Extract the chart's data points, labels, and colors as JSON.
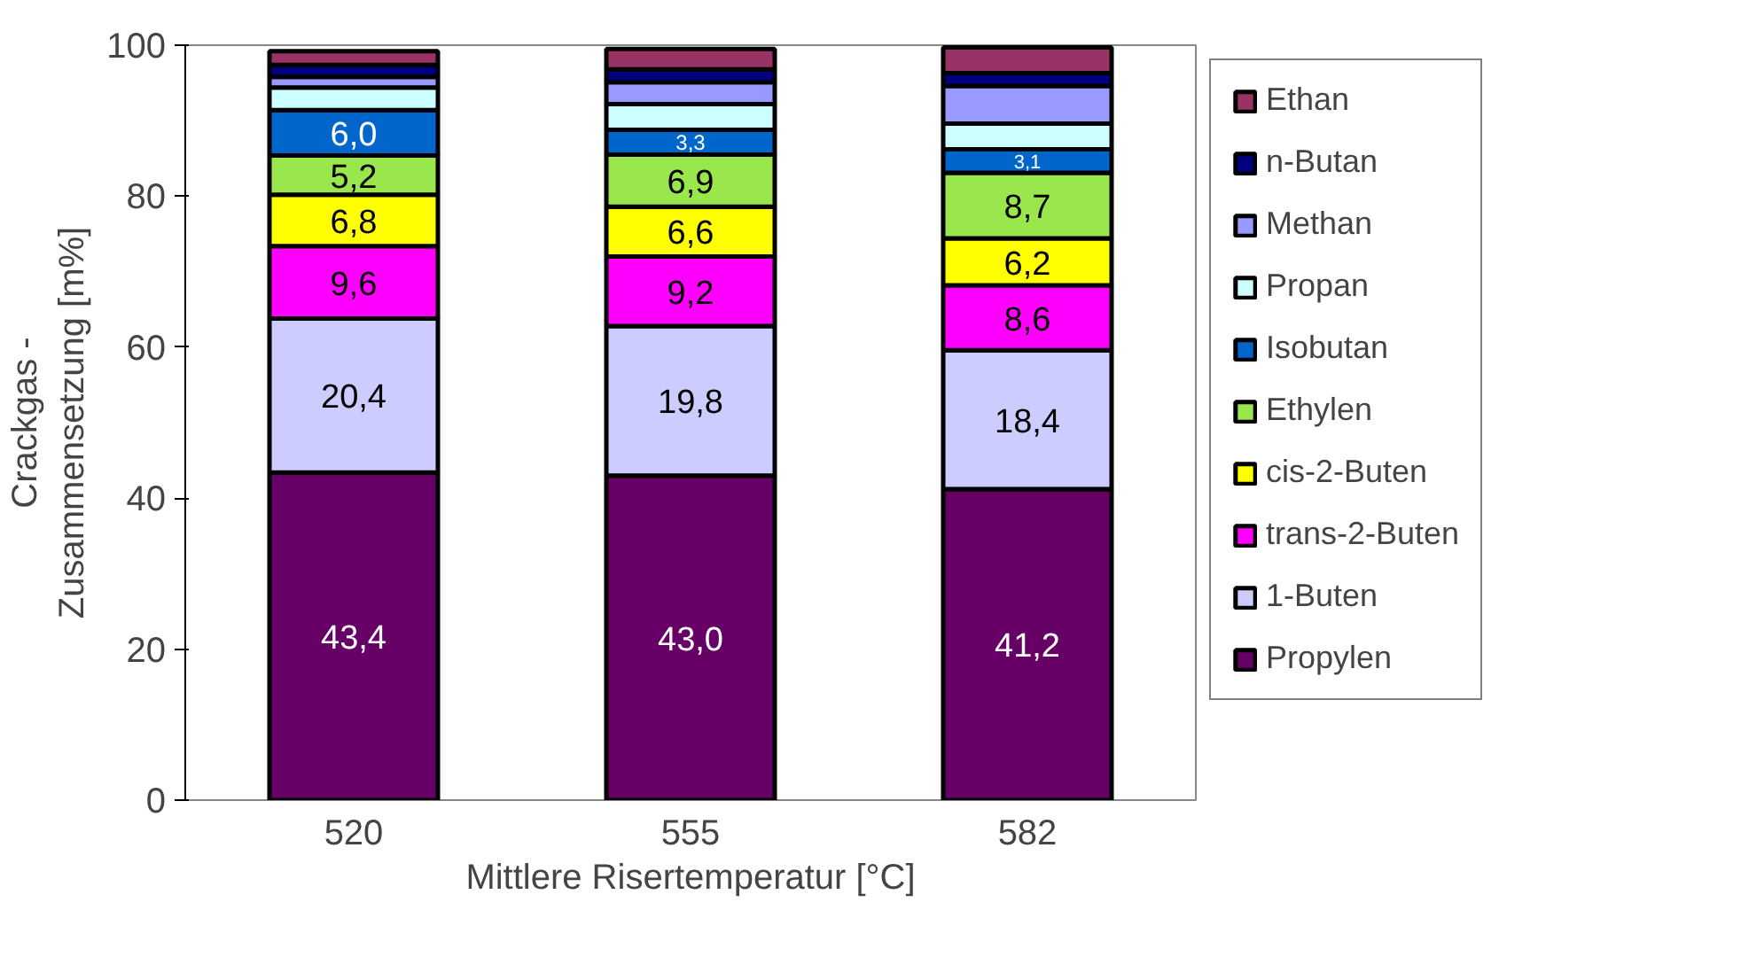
{
  "chart_data": {
    "type": "bar",
    "stacked": true,
    "xlabel": "Mittlere Risertemperatur [°C]",
    "ylabel": "Crackgas -\nZusammensetzung [m%]",
    "categories": [
      "520",
      "555",
      "582"
    ],
    "ylim": [
      0,
      100
    ],
    "yticks": [
      0,
      20,
      40,
      60,
      80,
      100
    ],
    "grid": false,
    "legend": "right",
    "series": [
      {
        "name": "Propylen",
        "color": "#660066",
        "values": [
          43.4,
          43.0,
          41.2
        ],
        "value_labels": [
          "43,4",
          "43,0",
          "41,2"
        ]
      },
      {
        "name": "1-Buten",
        "color": "#ccccff",
        "values": [
          20.4,
          19.8,
          18.4
        ],
        "value_labels": [
          "20,4",
          "19,8",
          "18,4"
        ]
      },
      {
        "name": "trans-2-Buten",
        "color": "#ff00ff",
        "values": [
          9.6,
          9.2,
          8.6
        ],
        "value_labels": [
          "9,6",
          "9,2",
          "8,6"
        ]
      },
      {
        "name": "cis-2-Buten",
        "color": "#ffff00",
        "values": [
          6.8,
          6.6,
          6.2
        ],
        "value_labels": [
          "6,8",
          "6,6",
          "6,2"
        ]
      },
      {
        "name": "Ethylen",
        "color": "#99e64d",
        "values": [
          5.2,
          6.9,
          8.7
        ],
        "value_labels": [
          "5,2",
          "6,9",
          "8,7"
        ]
      },
      {
        "name": "Isobutan",
        "color": "#0066cc",
        "values": [
          6.0,
          3.3,
          3.1
        ],
        "value_labels": [
          "6,0",
          "3,3",
          "3,1"
        ]
      },
      {
        "name": "Propan",
        "color": "#ccffff",
        "values": [
          3.0,
          3.4,
          3.4
        ]
      },
      {
        "name": "Methan",
        "color": "#9999ff",
        "values": [
          1.4,
          2.9,
          5.0
        ]
      },
      {
        "name": "n-Butan",
        "color": "#000080",
        "values": [
          1.6,
          1.7,
          1.7
        ]
      },
      {
        "name": "Ethan",
        "color": "#993366",
        "values": [
          1.8,
          2.7,
          3.4
        ]
      }
    ]
  }
}
